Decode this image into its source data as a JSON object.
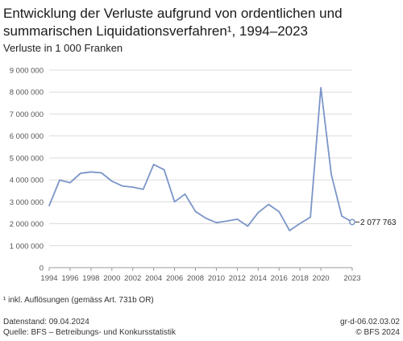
{
  "header": {
    "title_line1": "Entwicklung der Verluste aufgrund von ordentlichen und",
    "title_line2": "summarischen Liquidationsverfahren¹, 1994–2023",
    "subtitle": "Verluste in 1 000 Franken"
  },
  "chart_data": {
    "type": "line",
    "title": "Entwicklung der Verluste aufgrund von ordentlichen und summarischen Liquidationsverfahren¹, 1994–2023",
    "ylabel": "Verluste in 1 000 Franken",
    "xlabel": "",
    "x": [
      1994,
      1995,
      1996,
      1997,
      1998,
      1999,
      2000,
      2001,
      2002,
      2003,
      2004,
      2005,
      2006,
      2007,
      2008,
      2009,
      2010,
      2011,
      2012,
      2013,
      2014,
      2015,
      2016,
      2017,
      2018,
      2019,
      2020,
      2021,
      2022,
      2023
    ],
    "series": [
      {
        "values": [
          2820000,
          3990000,
          3870000,
          4300000,
          4360000,
          4320000,
          3940000,
          3720000,
          3670000,
          3570000,
          4700000,
          4460000,
          3000000,
          3350000,
          2560000,
          2250000,
          2050000,
          2120000,
          2210000,
          1890000,
          2510000,
          2880000,
          2550000,
          1690000,
          2010000,
          2300000,
          8200000,
          4240000,
          2350000,
          2077763
        ],
        "color": "#7b95c8"
      }
    ],
    "xlim": [
      1994,
      2023
    ],
    "ylim": [
      0,
      9000000
    ],
    "yticks": [
      0,
      1000000,
      2000000,
      3000000,
      4000000,
      5000000,
      6000000,
      7000000,
      8000000,
      9000000
    ],
    "ytick_labels": [
      "0",
      "1 000 000",
      "2 000 000",
      "3 000 000",
      "4 000 000",
      "5 000 000",
      "6 000 000",
      "7 000 000",
      "8 000 000",
      "9 000 000"
    ],
    "xtick_labels": [
      "1994",
      "1996",
      "1998",
      "2000",
      "2002",
      "2004",
      "2006",
      "2008",
      "2010",
      "2012",
      "2014",
      "2016",
      "2018",
      "2020",
      "2023"
    ],
    "annotation": {
      "year": 2023,
      "value": 2077763,
      "label": "2 077 763"
    },
    "grid": true
  },
  "footer": {
    "footnote": "¹ inkl. Auflösungen (gemäss Art. 731b OR)",
    "datenstand": "Datenstand: 09.04.2024",
    "quelle": "Quelle: BFS – Betreibungs- und Konkursstatistik",
    "code": "gr-d-06.02.03.02",
    "copyright": "© BFS 2024"
  }
}
